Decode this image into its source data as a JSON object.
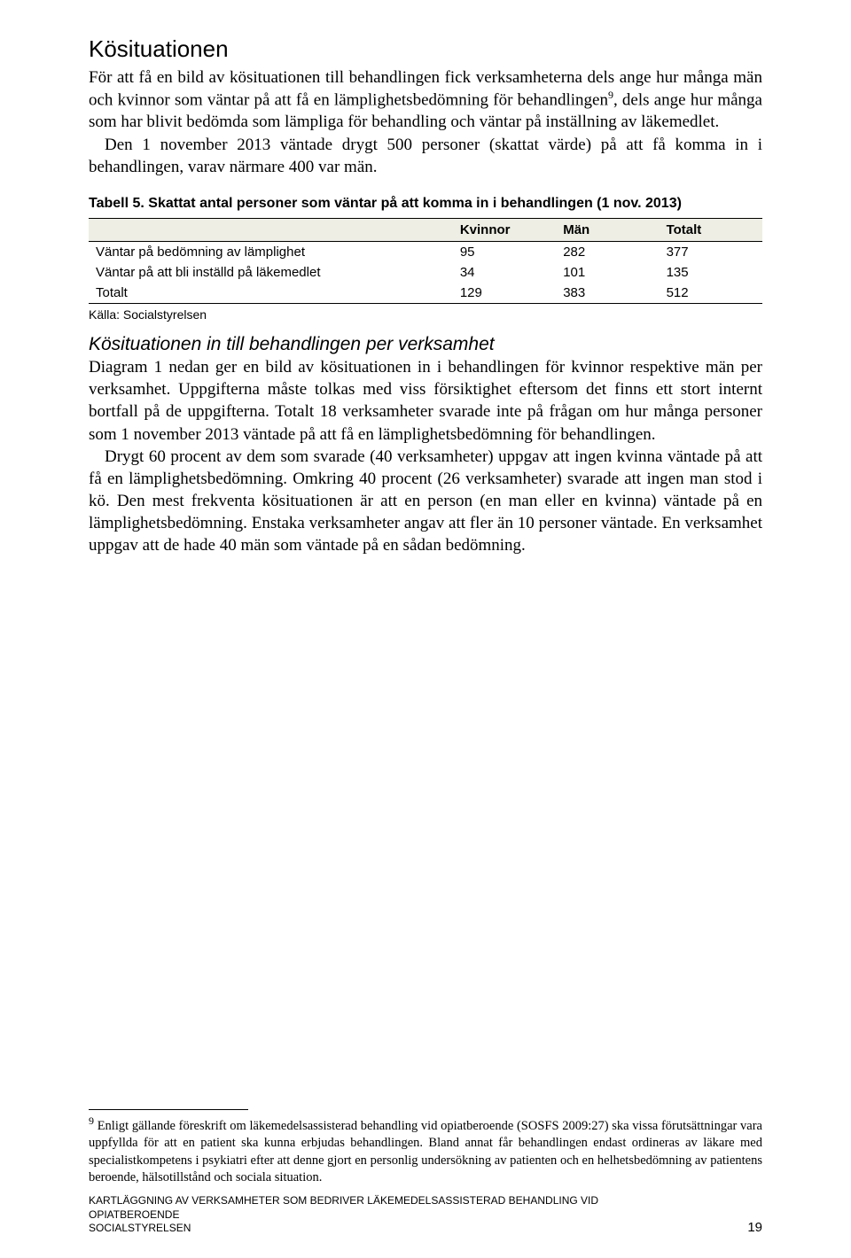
{
  "heading": "Kösituationen",
  "para1": "För att få en bild av kösituationen till behandlingen fick verksamheterna dels ange hur många män och kvinnor som väntar på att få en lämplighetsbedömning för behandlingen",
  "para1_sup": "9",
  "para1_tail": ", dels ange hur många som har blivit bedömda som lämpliga för behandling och väntar på inställning av läkemedlet.",
  "para2": "Den 1 november 2013 väntade drygt 500 personer (skattat värde) på att få komma in i behandlingen, varav närmare 400 var män.",
  "table_caption": "Tabell 5. Skattat antal personer som väntar på att komma in i behandlingen (1 nov. 2013)",
  "table": {
    "columns": [
      "",
      "Kvinnor",
      "Män",
      "Totalt"
    ],
    "rows": [
      [
        "Väntar på bedömning av lämplighet",
        "95",
        "282",
        "377"
      ],
      [
        "Väntar på att bli inställd på läkemedlet",
        "34",
        "101",
        "135"
      ],
      [
        "Totalt",
        "129",
        "383",
        "512"
      ]
    ],
    "header_bg": "#eeeee4",
    "border_color": "#000000",
    "font_size": 15
  },
  "source": "Källa: Socialstyrelsen",
  "subheading": "Kösituationen in till behandlingen per verksamhet",
  "para3": "Diagram 1 nedan ger en bild av kösituationen in i behandlingen för kvinnor respektive män per verksamhet. Uppgifterna måste tolkas med viss försiktighet eftersom det finns ett stort internt bortfall på de uppgifterna. Totalt 18 verksamheter svarade inte på frågan om hur många personer som 1 november 2013 väntade på att få en lämplighetsbedömning för behandlingen.",
  "para4": "Drygt 60 procent av dem som svarade (40 verksamheter) uppgav att ingen kvinna väntade på att få en lämplighetsbedömning. Omkring 40 procent (26 verksamheter) svarade att ingen man stod i kö. Den mest frekventa kösituationen är att en person (en man eller en kvinna) väntade på en lämplighetsbedömning. Enstaka verksamheter angav att fler än 10 personer väntade. En verksamhet uppgav att de hade 40 män som väntade på en sådan bedömning.",
  "footnote_marker": "9",
  "footnote_text": " Enligt gällande föreskrift om läkemedelsassisterad behandling vid opiatberoende (SOSFS 2009:27) ska vissa förutsättningar vara uppfyllda för att en patient ska kunna erbjudas behandlingen. Bland annat får behandlingen endast ordineras av läkare med specialistkompetens i psykiatri efter att denne gjort en personlig undersökning av patienten och en helhetsbedömning av patientens beroende, hälsotillstånd och sociala situation.",
  "footer_title": "KARTLÄGGNING AV VERKSAMHETER SOM BEDRIVER LÄKEMEDELSASSISTERAD BEHANDLING VID OPIATBEROENDE",
  "footer_publisher": "SOCIALSTYRELSEN",
  "page_number": "19"
}
